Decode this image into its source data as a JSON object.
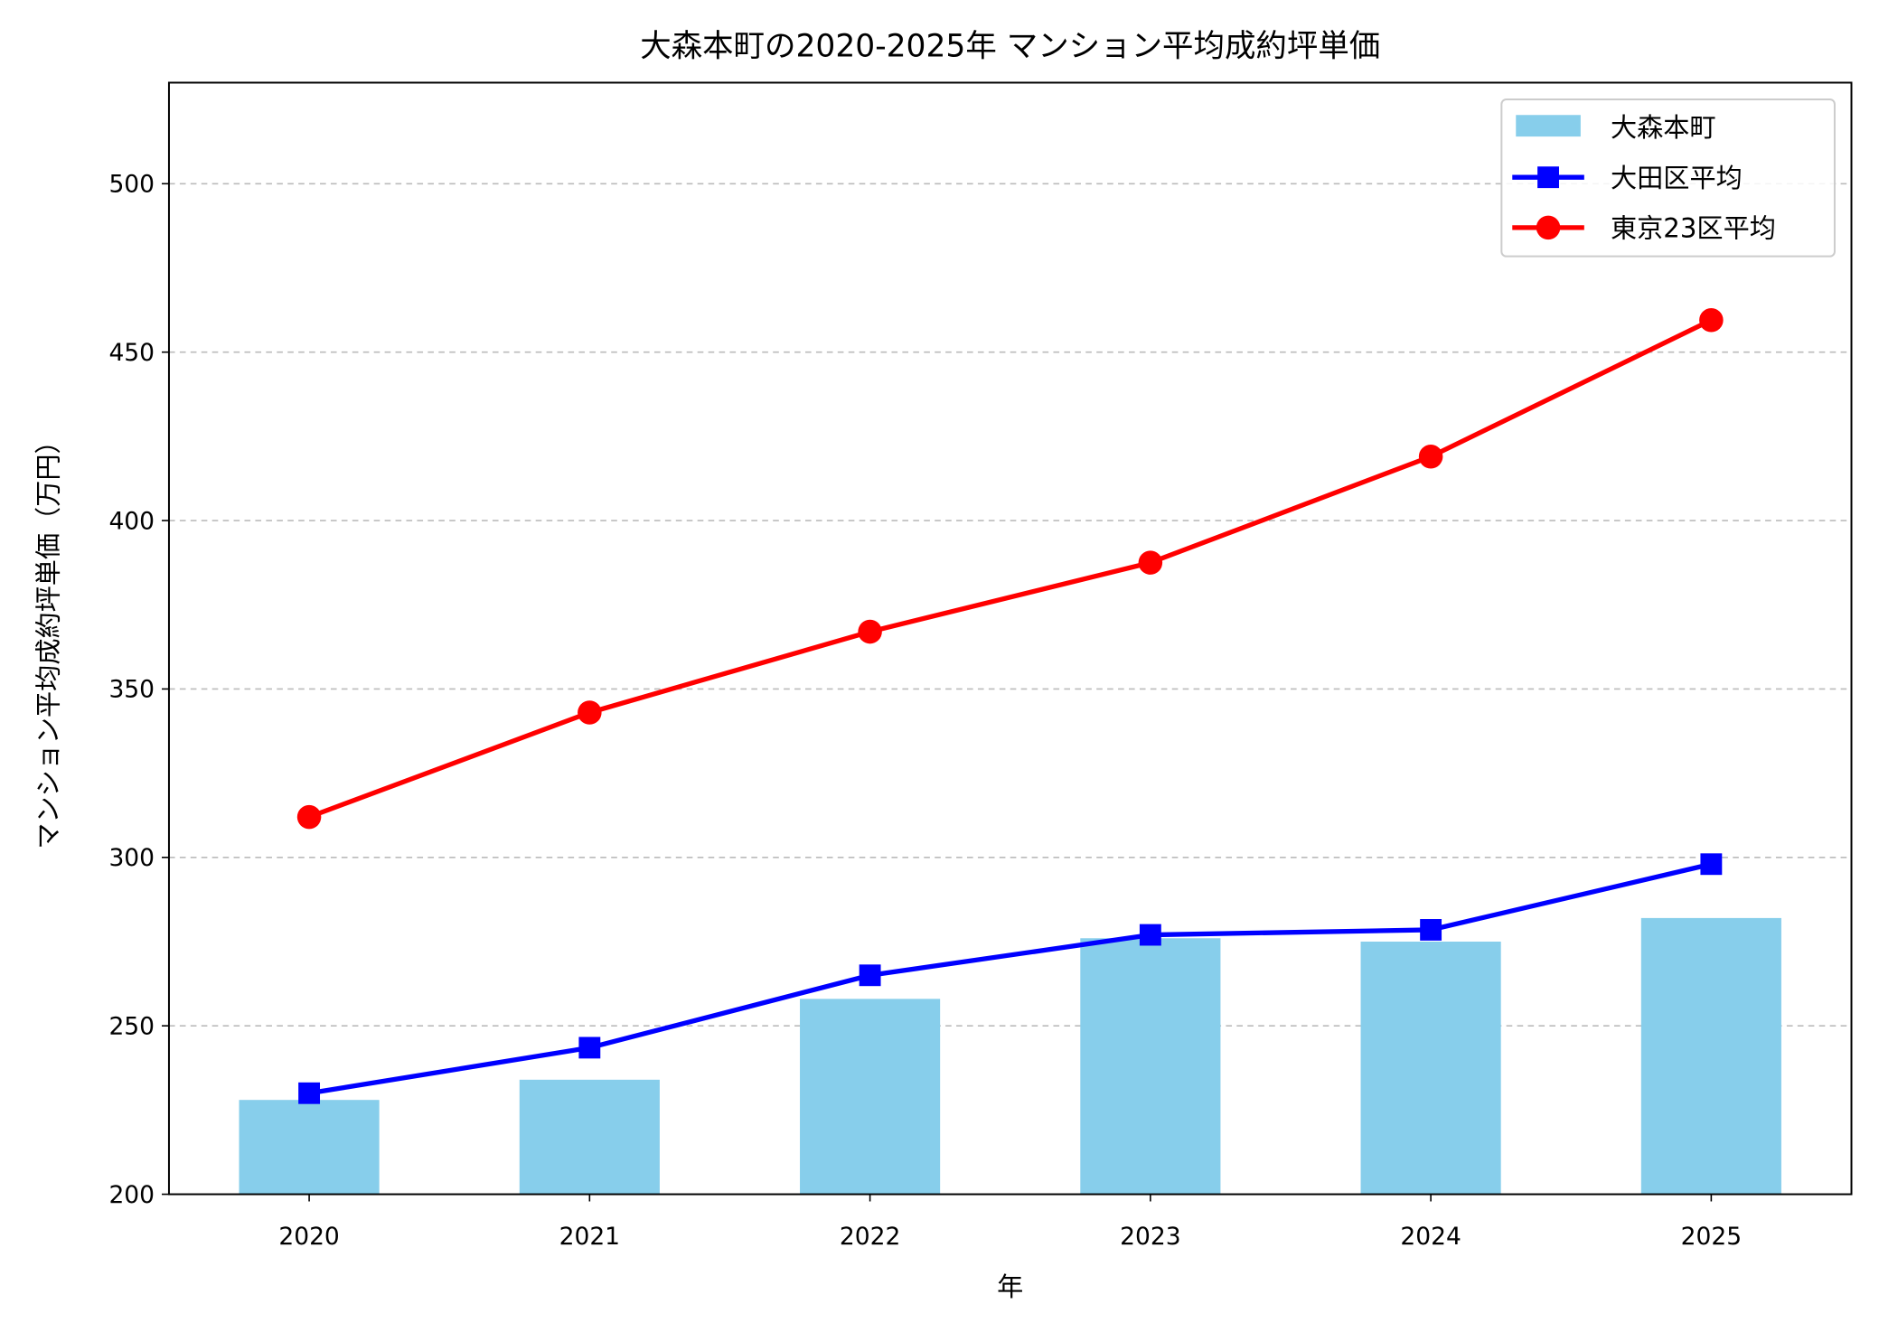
{
  "chart_data": {
    "type": "bar+line",
    "title": "大森本町の2020-2025年 マンション平均成約坪単価",
    "xlabel": "年",
    "ylabel": "マンション平均成約坪単価（万円）",
    "categories": [
      "2020",
      "2021",
      "2022",
      "2023",
      "2024",
      "2025"
    ],
    "ylim": [
      200,
      530
    ],
    "yticks": [
      200,
      250,
      300,
      350,
      400,
      450,
      500
    ],
    "grid": "y dashed",
    "legend_position": "top-right",
    "series": [
      {
        "name": "大森本町",
        "kind": "bar",
        "color": "#87CEEB",
        "values": [
          228,
          234,
          258,
          276,
          275,
          282
        ]
      },
      {
        "name": "大田区平均",
        "kind": "line",
        "marker": "square",
        "color": "#0000FF",
        "values": [
          230,
          243.5,
          265,
          277,
          278.5,
          298
        ]
      },
      {
        "name": "東京23区平均",
        "kind": "line",
        "marker": "circle",
        "color": "#FF0000",
        "values": [
          312,
          343,
          367,
          387.5,
          419,
          459.5
        ]
      }
    ]
  }
}
